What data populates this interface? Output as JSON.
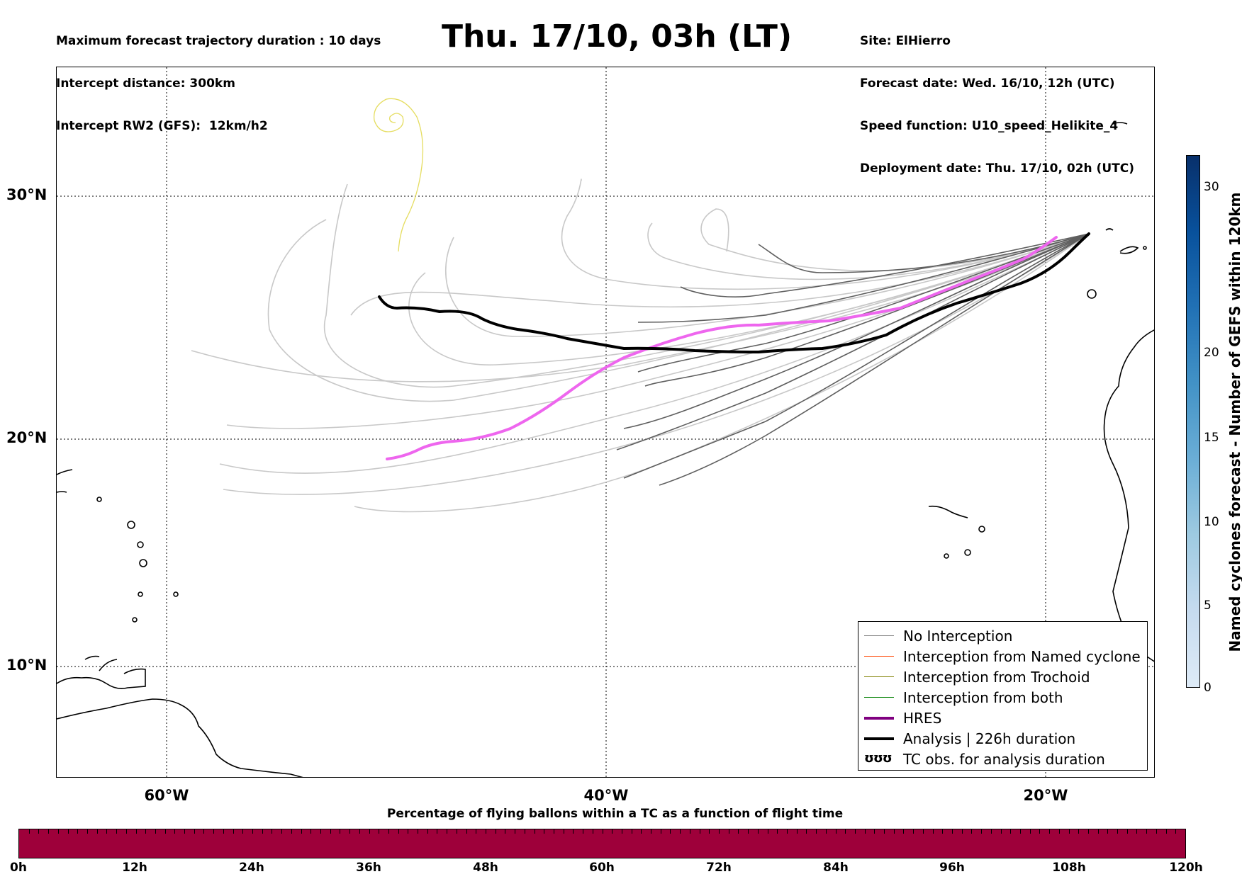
{
  "header_left": [
    "Maximum forecast trajectory duration : 10 days",
    "Intercept distance: 300km",
    "Intercept RW2 (GFS):  12km/h2"
  ],
  "title": "Thu. 17/10, 03h (LT)",
  "header_right": [
    "Site: ElHierro",
    "Forecast date: Wed. 16/10, 12h (UTC)",
    "Speed function: U10_speed_Helikite_4",
    "Deployment date: Thu. 17/10, 02h (UTC)"
  ],
  "map": {
    "lat_labels": [
      "30°N",
      "20°N",
      "10°N"
    ],
    "lon_labels": [
      "60°W",
      "40°W",
      "20°W"
    ]
  },
  "legend": [
    {
      "label": "No Interception",
      "color": "#808080"
    },
    {
      "label": "Interception from Named cyclone",
      "color": "#ff4500"
    },
    {
      "label": "Interception from Trochoid",
      "color": "#808000"
    },
    {
      "label": "Interception from both",
      "color": "#008000"
    },
    {
      "label": "HRES",
      "color": "#800080"
    },
    {
      "label": "Analysis | 226h duration",
      "color": "#000000"
    },
    {
      "label": "TC obs. for analysis duration",
      "color": "#000000"
    }
  ],
  "legend_symbol": "ʊʊʊ",
  "colorbar_vertical": {
    "title": "Named cyclones forecast - Number of GEFS within 120km",
    "ticks": [
      "30",
      "20",
      "15",
      "10",
      "5",
      "0"
    ],
    "colors": [
      "#deebf7",
      "#c6dbef",
      "#9ecae1",
      "#6baed6",
      "#4292c6",
      "#2171b5",
      "#08519c",
      "#08306b"
    ]
  },
  "colorbar_horizontal": {
    "title": "Percentage of flying ballons within a TC as a function of flight time",
    "ticks": [
      "0h",
      "12h",
      "24h",
      "36h",
      "48h",
      "60h",
      "72h",
      "84h",
      "96h",
      "108h",
      "120h"
    ],
    "fill_color": "#9e003a"
  },
  "colors": {
    "ensemble_gray": "#5f5f5f",
    "ensemble_light": "#c8c8c8",
    "hres": "#ee66ee",
    "analysis": "#000000",
    "cyclone_track": "#e5dd60"
  }
}
